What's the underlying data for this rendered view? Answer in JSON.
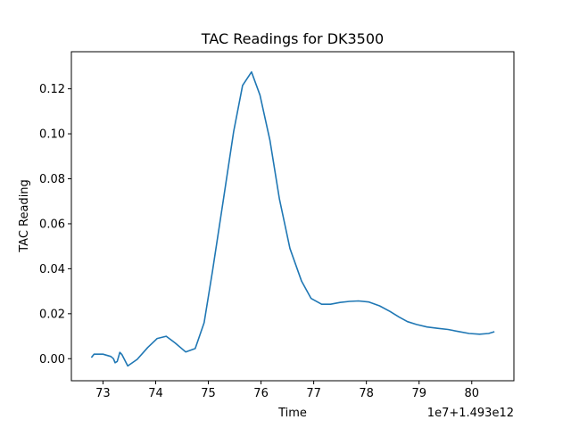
{
  "chart_data": {
    "type": "line",
    "title": "TAC Readings for DK3500",
    "xlabel": "Time",
    "ylabel": "TAC Reading",
    "x_offset_label": "1e7+1.493e12",
    "xlim": [
      72.4,
      80.8
    ],
    "ylim": [
      -0.0098,
      0.1365
    ],
    "xticks": [
      73,
      74,
      75,
      76,
      77,
      78,
      79,
      80
    ],
    "yticks": [
      0.0,
      0.02,
      0.04,
      0.06,
      0.08,
      0.1,
      0.12
    ],
    "ytick_labels": [
      "0.00",
      "0.02",
      "0.04",
      "0.06",
      "0.08",
      "0.10",
      "0.12"
    ],
    "grid": false,
    "line_color": "#1f77b4",
    "series": [
      {
        "x": [
          72.78,
          72.83,
          73.0,
          73.15,
          73.2,
          73.23,
          73.27,
          73.32,
          73.36,
          73.47,
          73.65,
          73.85,
          74.03,
          74.2,
          74.37,
          74.57,
          74.75,
          74.92,
          75.08,
          75.28,
          75.48,
          75.65,
          75.82,
          75.98,
          76.17,
          76.35,
          76.55,
          76.77,
          76.95,
          77.15,
          77.32,
          77.5,
          77.68,
          77.85,
          78.05,
          78.25,
          78.45,
          78.62,
          78.78,
          78.95,
          79.15,
          79.35,
          79.55,
          79.75,
          79.95,
          80.15,
          80.32,
          80.43
        ],
        "y": [
          0.0005,
          0.002,
          0.002,
          0.001,
          0.0,
          -0.0018,
          -0.0012,
          0.0028,
          0.0018,
          -0.0032,
          -0.0003,
          0.005,
          0.009,
          0.01,
          0.007,
          0.003,
          0.0045,
          0.016,
          0.039,
          0.07,
          0.101,
          0.1215,
          0.1275,
          0.1172,
          0.097,
          0.071,
          0.049,
          0.0345,
          0.0268,
          0.0242,
          0.0242,
          0.025,
          0.0255,
          0.0257,
          0.0252,
          0.0235,
          0.021,
          0.0185,
          0.0165,
          0.0152,
          0.0141,
          0.0135,
          0.013,
          0.0121,
          0.0112,
          0.0109,
          0.0112,
          0.012
        ]
      }
    ]
  }
}
